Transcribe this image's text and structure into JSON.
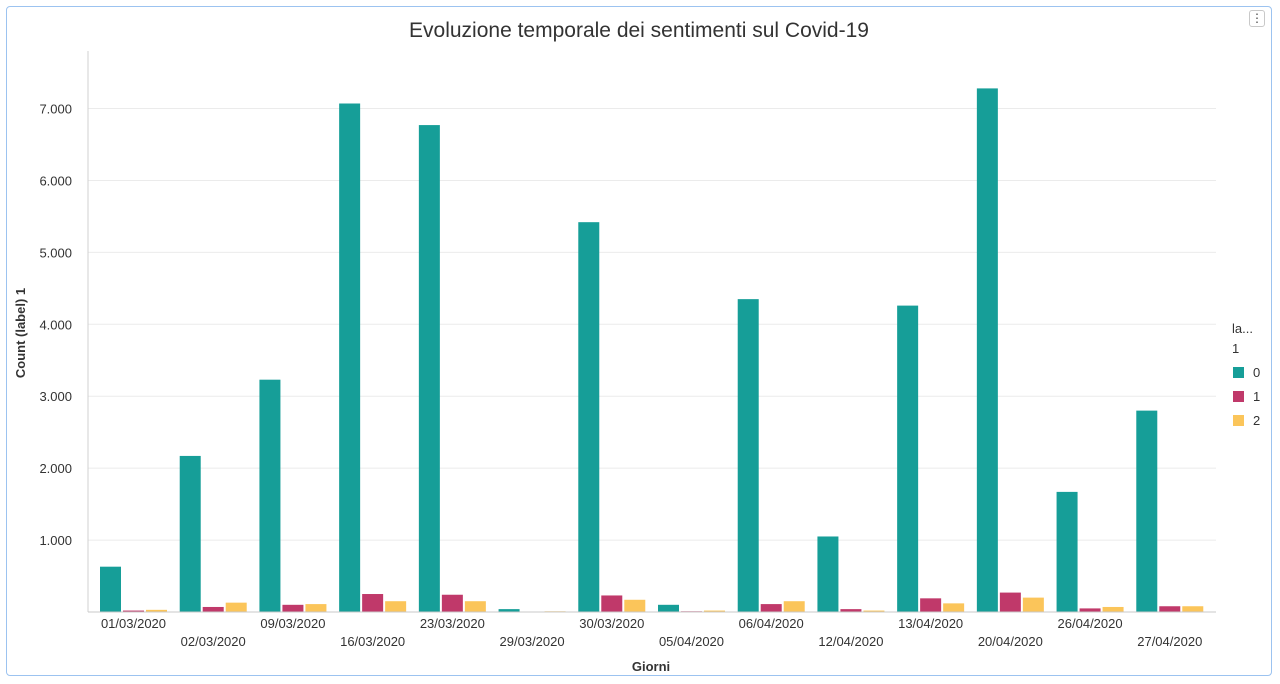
{
  "window": {
    "menu_icon": "vertical-ellipsis-icon",
    "menu_glyph": "⋮"
  },
  "chart_data": {
    "type": "bar",
    "title": "Evoluzione temporale dei sentimenti sul Covid-19",
    "xlabel": "Giorni",
    "ylabel": "Count (label) 1",
    "ylim": [
      0,
      7800
    ],
    "yticks": [
      1000,
      2000,
      3000,
      4000,
      5000,
      6000,
      7000
    ],
    "ytick_labels": [
      "1.000",
      "2.000",
      "3.000",
      "4.000",
      "5.000",
      "6.000",
      "7.000"
    ],
    "grid": true,
    "legend_position": "right",
    "legend_title": [
      "la...",
      "1"
    ],
    "categories": [
      "01/03/2020",
      "02/03/2020",
      "09/03/2020",
      "16/03/2020",
      "23/03/2020",
      "29/03/2020",
      "30/03/2020",
      "05/04/2020",
      "06/04/2020",
      "12/04/2020",
      "13/04/2020",
      "20/04/2020",
      "26/04/2020",
      "27/04/2020"
    ],
    "series": [
      {
        "name": "0",
        "color": "#169e98",
        "values": [
          630,
          2170,
          3230,
          7070,
          6770,
          40,
          5420,
          100,
          4350,
          1050,
          4260,
          7280,
          1670,
          2800
        ]
      },
      {
        "name": "1",
        "color": "#c0396a",
        "values": [
          20,
          70,
          100,
          250,
          240,
          0,
          230,
          10,
          110,
          40,
          190,
          270,
          50,
          80
        ]
      },
      {
        "name": "2",
        "color": "#fbc55a",
        "values": [
          30,
          130,
          110,
          150,
          150,
          10,
          170,
          20,
          150,
          20,
          120,
          200,
          70,
          80
        ]
      }
    ]
  }
}
